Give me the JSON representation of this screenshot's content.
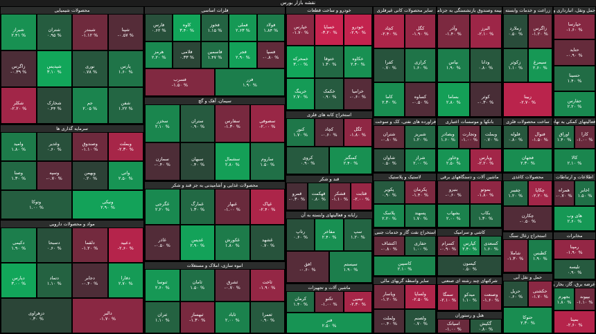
{
  "title": "نقشه بازار بورس",
  "sectors": [
    {
      "name": "محصولات شیمیایی",
      "tiles": [
        {
          "name": "شپنا",
          "change": -0.57,
          "label": "-۰.۵۷ %"
        },
        {
          "name": "شبندر",
          "change": -1.12,
          "label": "-۱.۱۲ %"
        },
        {
          "name": "شتران",
          "change": 0.95,
          "label": "۰.۹۵ %"
        },
        {
          "name": "شیراز",
          "change": 2.41,
          "label": "۲.۴۱ %"
        },
        {
          "name": "پارس",
          "change": 1.6,
          "label": "۱.۶۰ %"
        },
        {
          "name": "نوری",
          "change": 0.78,
          "label": "۰.۷۸ %"
        },
        {
          "name": "شپدیس",
          "change": 3.1,
          "label": "۳.۱۰ %"
        },
        {
          "name": "زاگرس",
          "change": -0.39,
          "label": "-۰.۳۹ %"
        },
        {
          "name": "شفن",
          "change": 1.22,
          "label": "۱.۲۲ %"
        },
        {
          "name": "جم",
          "change": 2.05,
          "label": "۲.۰۵ %"
        },
        {
          "name": "شخارک",
          "change": 0.44,
          "label": "۰.۴۴ %"
        },
        {
          "name": "شکلر",
          "change": -2.2,
          "label": "-۲.۲۰ %"
        }
      ]
    },
    {
      "name": "فلزات اساسی",
      "tiles": [
        {
          "name": "فولاد",
          "change": 1.84,
          "label": "۱.۸۴ %"
        },
        {
          "name": "فملی",
          "change": 2.63,
          "label": "۲.۶۳ %"
        },
        {
          "name": "فخوز",
          "change": 1.15,
          "label": "۱.۱۵ %"
        },
        {
          "name": "کاوه",
          "change": 3.4,
          "label": "۳.۴۰ %"
        },
        {
          "name": "فارس",
          "change": 0.62,
          "label": "۰.۶۲ %"
        },
        {
          "name": "فسپا",
          "change": -0.8,
          "label": "-۰.۸۰ %"
        },
        {
          "name": "فجر",
          "change": 2.9,
          "label": "۲.۹۰ %"
        },
        {
          "name": "فاسمین",
          "change": 1.47,
          "label": "۱.۴۷ %"
        },
        {
          "name": "فلامی",
          "change": 0.33,
          "label": "۰.۳۳ %"
        },
        {
          "name": "هرمز",
          "change": 2.2,
          "label": "۲.۲۰ %"
        },
        {
          "name": "فزر",
          "change": 1.9,
          "label": "۱.۹۰ %"
        },
        {
          "name": "فسرب",
          "change": -1.5,
          "label": "-۱.۵۰ %"
        }
      ]
    },
    {
      "name": "خودرو و ساخت قطعات",
      "tiles": [
        {
          "name": "خودرو",
          "change": -2.9,
          "label": "-۲.۹۰ %"
        },
        {
          "name": "خساپا",
          "change": -3.2,
          "label": "-۳.۲۰ %"
        },
        {
          "name": "خپارس",
          "change": -1.7,
          "label": "-۱.۷۰ %"
        },
        {
          "name": "خکاوه",
          "change": 2.4,
          "label": "۲.۴۰ %"
        },
        {
          "name": "ختوقا",
          "change": 1.3,
          "label": "۱.۳۰ %"
        },
        {
          "name": "خمحرکه",
          "change": 3.0,
          "label": "۳.۰۰ %"
        },
        {
          "name": "خزامیا",
          "change": -0.6,
          "label": "-۰.۶۰ %"
        },
        {
          "name": "خکمک",
          "change": 0.9,
          "label": "۰.۹۰ %"
        },
        {
          "name": "خرینگ",
          "change": 2.7,
          "label": "۲.۷۰ %"
        }
      ]
    },
    {
      "name": "سایر محصولات کانی غیرفلزی",
      "tiles": [
        {
          "name": "کگل",
          "change": -1.9,
          "label": "-۱.۹۰ %"
        },
        {
          "name": "کچاد",
          "change": -2.4,
          "label": "-۲.۴۰ %"
        },
        {
          "name": "کرازی",
          "change": 1.6,
          "label": "۱.۶۰ %"
        },
        {
          "name": "کفرا",
          "change": 0.7,
          "label": "۰.۷۰ %"
        },
        {
          "name": "کساوه",
          "change": -0.5,
          "label": "-۰.۵۰ %"
        },
        {
          "name": "کاما",
          "change": 2.3,
          "label": "۲.۳۰ %"
        }
      ]
    },
    {
      "name": "بیمه وصندوق بازنشستگی به جزتامین اجتماعی",
      "tiles": [
        {
          "name": "البرز",
          "change": -2.1,
          "label": "-۲.۱۰ %"
        },
        {
          "name": "وآذر",
          "change": -1.4,
          "label": "-۱.۴۰ %"
        },
        {
          "name": "ودانا",
          "change": 0.8,
          "label": "۰.۸۰ %"
        },
        {
          "name": "بپاس",
          "change": 1.9,
          "label": "۱.۹۰ %"
        },
        {
          "name": "کوثر",
          "change": -0.3,
          "label": "-۰.۳۰ %"
        },
        {
          "name": "بساما",
          "change": 2.8,
          "label": "۲.۸۰ %"
        }
      ]
    },
    {
      "name": "زراعت و خدمات وابسته",
      "tiles": [
        {
          "name": "زاگرس",
          "change": -1.2,
          "label": "-۱.۲۰ %"
        },
        {
          "name": "زملارد",
          "change": 0.5,
          "label": "۰.۵۰ %"
        },
        {
          "name": "سیمرغ",
          "change": 2.6,
          "label": "۲.۶۰ %"
        },
        {
          "name": "زکوثر",
          "change": 1.1,
          "label": "۱.۱۰ %"
        },
        {
          "name": "زبینا",
          "change": -2.7,
          "label": "-۲.۷۰ %"
        }
      ]
    },
    {
      "name": "حمل ونقل، انبارداری و ارتباطات",
      "tiles": [
        {
          "name": "حپارسا",
          "change": -1.6,
          "label": "-۱.۶۰ %"
        },
        {
          "name": "حتاید",
          "change": -0.9,
          "label": "-۰.۹۰ %"
        },
        {
          "name": "حسینا",
          "change": 1.4,
          "label": "۱.۴۰ %"
        },
        {
          "name": "حفارس",
          "change": 2.2,
          "label": "۲.۲۰ %"
        }
      ]
    },
    {
      "name": "سرمایه گذاری ها",
      "tiles": [
        {
          "name": "وبملت",
          "change": -2.3,
          "label": "-۲.۳۰ %"
        },
        {
          "name": "وصندوق",
          "change": -1.1,
          "label": "-۱.۱۰ %"
        },
        {
          "name": "وغدیر",
          "change": 0.6,
          "label": "۰.۶۰ %"
        },
        {
          "name": "وامید",
          "change": 1.8,
          "label": "۱.۸۰ %"
        },
        {
          "name": "واتی",
          "change": 2.5,
          "label": "۲.۵۰ %"
        },
        {
          "name": "وبهمن",
          "change": 0.2,
          "label": "۰.۲۰ %"
        },
        {
          "name": "وسپه",
          "change": -0.7,
          "label": "-۰.۷۰ %"
        },
        {
          "name": "وصنا",
          "change": 1.3,
          "label": "۱.۳۰ %"
        },
        {
          "name": "ونیکی",
          "change": 2.9,
          "label": "۲.۹۰ %"
        },
        {
          "name": "وتوکا",
          "change": 1.0,
          "label": "۱.۰۰ %"
        }
      ]
    },
    {
      "name": "سیمان، آهک و گچ",
      "tiles": [
        {
          "name": "سصوفی",
          "change": -2.0,
          "label": "-۲.۰۰ %"
        },
        {
          "name": "سفارس",
          "change": -1.3,
          "label": "-۱.۳۰ %"
        },
        {
          "name": "ستران",
          "change": 0.9,
          "label": "۰.۹۰ %"
        },
        {
          "name": "سخزر",
          "change": 2.1,
          "label": "۲.۱۰ %"
        },
        {
          "name": "ساروم",
          "change": 1.5,
          "label": "۱.۵۰ %"
        },
        {
          "name": "سشمال",
          "change": 2.8,
          "label": "۲.۸۰ %"
        },
        {
          "name": "سبهان",
          "change": 0.4,
          "label": "۰.۴۰ %"
        },
        {
          "name": "سمازن",
          "change": -0.4,
          "label": "-۰.۴۰ %"
        }
      ]
    },
    {
      "name": "استخراج کانه های فلزی",
      "tiles": [
        {
          "name": "کگل",
          "change": -1.8,
          "label": "-۱.۸۰ %"
        },
        {
          "name": "کچاد",
          "change": -0.6,
          "label": "-۰.۶۰ %"
        },
        {
          "name": "کنور",
          "change": 1.7,
          "label": "۱.۷۰ %"
        },
        {
          "name": "کمنگنز",
          "change": 2.4,
          "label": "۲.۴۰ %"
        },
        {
          "name": "کروی",
          "change": 0.9,
          "label": "۰.۹۰ %"
        }
      ]
    },
    {
      "name": "فراورده های نفتی، کک و سوخت هسته ای",
      "tiles": [
        {
          "name": "شبریز",
          "change": 1.2,
          "label": "۱.۲۰ %"
        },
        {
          "name": "شتران",
          "change": -0.8,
          "label": "-۰.۸۰ %"
        },
        {
          "name": "شراز",
          "change": 2.0,
          "label": "۲.۰۰ %"
        },
        {
          "name": "شاوان",
          "change": 0.5,
          "label": "۰.۵۰ %"
        }
      ]
    },
    {
      "name": "بانکها و موسسات اعتباری",
      "tiles": [
        {
          "name": "وبملت",
          "change": 0.7,
          "label": "۰.۷۰ %"
        },
        {
          "name": "وتجارت",
          "change": -1.0,
          "label": "-۱.۰۰ %"
        },
        {
          "name": "وبصادر",
          "change": 1.6,
          "label": "۱.۶۰ %"
        },
        {
          "name": "وپارس",
          "change": -2.2,
          "label": "-۲.۲۰ %"
        },
        {
          "name": "وخاور",
          "change": 2.5,
          "label": "۲.۵۰ %"
        }
      ]
    },
    {
      "name": "ساخت محصولات فلزی",
      "tiles": [
        {
          "name": "فنوال",
          "change": -1.5,
          "label": "-۱.۵۰ %"
        },
        {
          "name": "فلوله",
          "change": 0.8,
          "label": "۰.۸۰ %"
        },
        {
          "name": "فجهان",
          "change": 2.3,
          "label": "۲.۳۰ %"
        }
      ]
    },
    {
      "name": "فعالیتهای کمکی به نهادهای مالی واسط",
      "tiles": [
        {
          "name": "کارا",
          "change": -1.0,
          "label": "-۱.۰۰ %"
        },
        {
          "name": "اوراق",
          "change": 1.4,
          "label": "۱.۴۰ %"
        },
        {
          "name": "کالا",
          "change": 2.1,
          "label": "۲.۱۰ %"
        }
      ]
    },
    {
      "name": "مواد و محصولات دارویی",
      "tiles": [
        {
          "name": "دعبید",
          "change": -2.6,
          "label": "-۲.۶۰ %"
        },
        {
          "name": "دلقما",
          "change": -1.2,
          "label": "-۱.۲۰ %"
        },
        {
          "name": "دسبحا",
          "change": 0.6,
          "label": "۰.۶۰ %"
        },
        {
          "name": "دکیمی",
          "change": 1.9,
          "label": "۱.۹۰ %"
        },
        {
          "name": "دفارا",
          "change": 2.7,
          "label": "۲.۷۰ %"
        },
        {
          "name": "دجابر",
          "change": -0.4,
          "label": "-۰.۴۰ %"
        },
        {
          "name": "دتماد",
          "change": 1.1,
          "label": "۱.۱۰ %"
        },
        {
          "name": "دپارس",
          "change": 3.0,
          "label": "۳.۰۰ %"
        },
        {
          "name": "دالبر",
          "change": -1.7,
          "label": "-۱.۷۰ %"
        },
        {
          "name": "دزهراوی",
          "change": 0.3,
          "label": "۰.۳۰ %"
        }
      ]
    },
    {
      "name": "محصولات غذایی و آشامیدنی به جز قند و شکر",
      "tiles": [
        {
          "name": "غپاک",
          "change": -2.4,
          "label": "-۲.۴۰ %"
        },
        {
          "name": "غبهار",
          "change": -1.0,
          "label": "-۱.۰۰ %"
        },
        {
          "name": "غمارگ",
          "change": 1.3,
          "label": "۱.۳۰ %"
        },
        {
          "name": "غگرجی",
          "change": 2.2,
          "label": "۲.۲۰ %"
        },
        {
          "name": "غشهد",
          "change": 0.7,
          "label": "۰.۷۰ %"
        },
        {
          "name": "غکورش",
          "change": 1.8,
          "label": "۱.۸۰ %"
        },
        {
          "name": "غدیس",
          "change": 2.9,
          "label": "۲.۹۰ %"
        },
        {
          "name": "غاذر",
          "change": -0.5,
          "label": "-۰.۵۰ %"
        }
      ]
    },
    {
      "name": "انبوه سازی، املاک و مستغلات",
      "tiles": [
        {
          "name": "ثاخت",
          "change": -1.9,
          "label": "-۱.۹۰ %"
        },
        {
          "name": "ثشرق",
          "change": -0.7,
          "label": "-۰.۷۰ %"
        },
        {
          "name": "ثامان",
          "change": 1.5,
          "label": "۱.۵۰ %"
        },
        {
          "name": "ثنوسا",
          "change": 2.6,
          "label": "۲.۶۰ %"
        },
        {
          "name": "ثعمرا",
          "change": 0.9,
          "label": "۰.۹۰ %"
        },
        {
          "name": "ثاباد",
          "change": 2.0,
          "label": "۲.۰۰ %"
        },
        {
          "name": "ثبهساز",
          "change": -1.3,
          "label": "-۱.۳۰ %"
        },
        {
          "name": "ثتران",
          "change": 1.1,
          "label": "۱.۱۰ %"
        }
      ]
    },
    {
      "name": "قند و شکر",
      "tiles": [
        {
          "name": "قثابت",
          "change": -2.0,
          "label": "-۲.۰۰ %"
        },
        {
          "name": "قشکر",
          "change": -1.1,
          "label": "-۱.۱۰ %"
        },
        {
          "name": "قهکمت",
          "change": 0.8,
          "label": "۰.۸۰ %"
        },
        {
          "name": "قمرو",
          "change": -0.3,
          "label": "-۰.۳۰ %"
        }
      ]
    },
    {
      "name": "رایانه و فعالیتهای وابسته به آن",
      "tiles": [
        {
          "name": "سپ",
          "change": 1.2,
          "label": "۱.۲۰ %"
        },
        {
          "name": "مفاخر",
          "change": 2.4,
          "label": "۲.۴۰ %"
        },
        {
          "name": "رتاپ",
          "change": 0.6,
          "label": "۰.۶۰ %"
        },
        {
          "name": "سیستم",
          "change": 1.9,
          "label": "۱.۹۰ %"
        },
        {
          "name": "افق",
          "change": -0.6,
          "label": "-۰.۶۰ %"
        }
      ]
    },
    {
      "name": "ماشین آلات و تجهیزات",
      "tiles": [
        {
          "name": "تپمپی",
          "change": -2.3,
          "label": "-۲.۳۰ %"
        },
        {
          "name": "تکنو",
          "change": -1.0,
          "label": "-۱.۰۰ %"
        },
        {
          "name": "کرمان",
          "change": 1.4,
          "label": "۱.۴۰ %"
        },
        {
          "name": "فنر",
          "change": 2.5,
          "label": "۲.۵۰ %"
        }
      ]
    },
    {
      "name": "لاستیک و پلاستیک",
      "tiles": [
        {
          "name": "پکرمان",
          "change": -1.4,
          "label": "-۱.۴۰ %"
        },
        {
          "name": "پکویر",
          "change": 0.9,
          "label": "۰.۹۰ %"
        },
        {
          "name": "پسهند",
          "change": 1.7,
          "label": "۱.۷۰ %"
        },
        {
          "name": "پلاسک",
          "change": 2.2,
          "label": "۲.۲۰ %"
        }
      ]
    },
    {
      "name": "استخراج نفت گاز و خدمات جنبی جز اکتشاف",
      "tiles": [
        {
          "name": "حفاری",
          "change": 1.0,
          "label": "۱.۰۰ %"
        },
        {
          "name": "اکتشاف",
          "change": -0.8,
          "label": "-۰.۸۰ %"
        },
        {
          "name": "کاسپین",
          "change": 2.1,
          "label": "۲.۱۰ %"
        }
      ]
    },
    {
      "name": "سایر واسطه گریهای مالی",
      "tiles": [
        {
          "name": "ولساپا",
          "change": -2.5,
          "label": "-۲.۵۰ %"
        },
        {
          "name": "وپاسار",
          "change": -1.2,
          "label": "-۱.۲۰ %"
        },
        {
          "name": "ولصنم",
          "change": 0.7,
          "label": "۰.۷۰ %"
        },
        {
          "name": "ولملت",
          "change": -0.4,
          "label": "-۰.۴۰ %"
        }
      ]
    },
    {
      "name": "ماشین آلات و دستگاههای برقی",
      "tiles": [
        {
          "name": "بموتو",
          "change": -1.8,
          "label": "-۱.۸۰ %"
        },
        {
          "name": "بنیرو",
          "change": -0.6,
          "label": "-۰.۶۰ %"
        },
        {
          "name": "بکاب",
          "change": 1.3,
          "label": "۱.۳۰ %"
        },
        {
          "name": "بشهاب",
          "change": 2.0,
          "label": "۲.۰۰ %"
        }
      ]
    },
    {
      "name": "کاشی و سرامیک",
      "tiles": [
        {
          "name": "کسعدی",
          "change": 1.6,
          "label": "۱.۶۰ %"
        },
        {
          "name": "کپارس",
          "change": 2.4,
          "label": "۲.۴۰ %"
        },
        {
          "name": "کسرام",
          "change": -0.9,
          "label": "-۰.۹۰ %"
        },
        {
          "name": "کیسون",
          "change": 0.5,
          "label": "۰.۵۰ %"
        }
      ]
    },
    {
      "name": "شرکتهای چند رشته ای صنعتی",
      "tiles": [
        {
          "name": "وصنعت",
          "change": -1.6,
          "label": "-۱.۶۰ %"
        },
        {
          "name": "میدکو",
          "change": 1.1,
          "label": "۱.۱۰ %"
        },
        {
          "name": "سمگا",
          "change": -2.1,
          "label": "-۲.۱۰ %"
        }
      ]
    },
    {
      "name": "هتل و رستوران",
      "tiles": [
        {
          "name": "گکیش",
          "change": 0.8,
          "label": "۰.۸۰ %"
        },
        {
          "name": "اسیاتک",
          "change": -1.0,
          "label": "-۱.۰۰ %"
        }
      ]
    },
    {
      "name": "محصولات کاغذی",
      "tiles": [
        {
          "name": "چکاپا",
          "change": -2.2,
          "label": "-۲.۲۰ %"
        },
        {
          "name": "چفیبر",
          "change": 1.2,
          "label": "۱.۲۰ %"
        },
        {
          "name": "چکارن",
          "change": -0.5,
          "label": "-۰.۵۰ %"
        }
      ]
    },
    {
      "name": "استخراج زغال سنگ",
      "tiles": [
        {
          "name": "کطبس",
          "change": 1.9,
          "label": "۱.۹۰ %"
        },
        {
          "name": "شاملا",
          "change": -1.3,
          "label": "-۱.۳۰ %"
        }
      ]
    },
    {
      "name": "حمل و نقل آبی",
      "tiles": [
        {
          "name": "حکشتی",
          "change": -1.7,
          "label": "-۱.۷۰ %"
        },
        {
          "name": "حریل",
          "change": 0.6,
          "label": "۰.۶۰ %"
        },
        {
          "name": "حتوکا",
          "change": 2.3,
          "label": "۲.۳۰ %"
        }
      ]
    },
    {
      "name": "اطلاعات و ارتباطات",
      "tiles": [
        {
          "name": "اخابر",
          "change": 1.5,
          "label": "۱.۵۰ %"
        },
        {
          "name": "همراه",
          "change": -0.7,
          "label": "-۰.۷۰ %"
        },
        {
          "name": "های وب",
          "change": 2.6,
          "label": "۲.۶۰ %"
        }
      ]
    },
    {
      "name": "مخابرات",
      "tiles": [
        {
          "name": "رمپنا",
          "change": -1.9,
          "label": "-۱.۹۰ %"
        },
        {
          "name": "تلیسه",
          "change": 0.9,
          "label": "۰.۹۰ %"
        }
      ]
    },
    {
      "name": "عرضه برق، گاز، بخار و آب گرم",
      "tiles": [
        {
          "name": "بپیوند",
          "change": -1.1,
          "label": "-۱.۱۰ %"
        },
        {
          "name": "بجهرم",
          "change": 1.8,
          "label": "۱.۸۰ %"
        },
        {
          "name": "بمپنا",
          "change": -2.6,
          "label": "-۲.۶۰ %"
        }
      ]
    }
  ]
}
